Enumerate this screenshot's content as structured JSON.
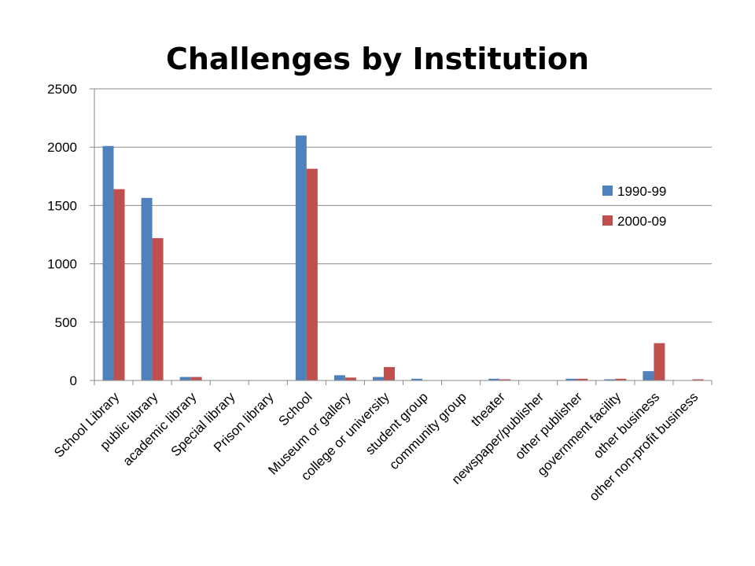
{
  "chart_data": {
    "type": "bar",
    "title": "Challenges by Institution",
    "categories": [
      "School Library",
      "public library",
      "academic library",
      "Special library",
      "Prison library",
      "School",
      "Museum or gallery",
      "college or university",
      "student group",
      "community group",
      "theater",
      "newspaper/publisher",
      "other publisher",
      "government facility",
      "other business",
      "other non-profit business"
    ],
    "series": [
      {
        "name": "1990-99",
        "color": "#4F81BD",
        "values": [
          2010,
          1565,
          30,
          0,
          0,
          2100,
          45,
          30,
          15,
          0,
          15,
          0,
          15,
          10,
          80,
          0
        ]
      },
      {
        "name": "2000-09",
        "color": "#C0504D",
        "values": [
          1640,
          1220,
          30,
          0,
          0,
          1815,
          25,
          115,
          0,
          0,
          10,
          0,
          15,
          15,
          320,
          10
        ]
      }
    ],
    "ylim": [
      0,
      2500
    ],
    "yticks": [
      0,
      500,
      1000,
      1500,
      2000,
      2500
    ],
    "grid": true,
    "legend_position": "right"
  }
}
